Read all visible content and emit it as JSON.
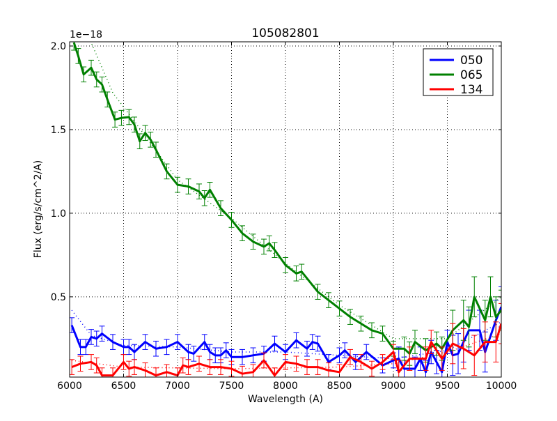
{
  "chart_data": {
    "type": "line",
    "title": "105082801",
    "xlabel": "Wavelength (A)",
    "ylabel": "Flux (erg/s/cm^2/A)",
    "offset_text": "1e−18",
    "xlim": [
      6000,
      10000
    ],
    "ylim": [
      0.02,
      2.025
    ],
    "xticks": [
      6000,
      6500,
      7000,
      7500,
      8000,
      8500,
      9000,
      9500,
      10000
    ],
    "xtick_labels": [
      "6000",
      "6500",
      "7000",
      "7500",
      "8000",
      "8500",
      "9000",
      "9500",
      "10000"
    ],
    "yticks": [
      0.5,
      1.0,
      1.5,
      2.0
    ],
    "ytick_labels": [
      "0.5",
      "1.0",
      "1.5",
      "2.0"
    ],
    "grid": true,
    "legend_position": "top-right",
    "yerr_by_range": [
      [
        6000,
        9000,
        0.045
      ],
      [
        9000,
        9500,
        0.07
      ],
      [
        9500,
        10000,
        0.12
      ]
    ],
    "series": [
      {
        "name": "050",
        "color": "#0000ff",
        "x": [
          6020,
          6100,
          6150,
          6200,
          6250,
          6300,
          6400,
          6500,
          6550,
          6600,
          6700,
          6800,
          6900,
          7000,
          7100,
          7150,
          7250,
          7300,
          7350,
          7400,
          7450,
          7500,
          7600,
          7700,
          7800,
          7900,
          8000,
          8100,
          8200,
          8250,
          8300,
          8400,
          8500,
          8550,
          8650,
          8750,
          8900,
          9000,
          9050,
          9100,
          9200,
          9250,
          9300,
          9350,
          9400,
          9450,
          9500,
          9550,
          9600,
          9650,
          9700,
          9800,
          9850,
          9950,
          10000
        ],
        "y": [
          0.33,
          0.2,
          0.2,
          0.26,
          0.25,
          0.28,
          0.23,
          0.2,
          0.2,
          0.17,
          0.23,
          0.19,
          0.2,
          0.23,
          0.17,
          0.16,
          0.23,
          0.17,
          0.15,
          0.15,
          0.18,
          0.14,
          0.14,
          0.15,
          0.16,
          0.22,
          0.17,
          0.24,
          0.19,
          0.23,
          0.22,
          0.11,
          0.15,
          0.18,
          0.11,
          0.17,
          0.09,
          0.12,
          0.13,
          0.07,
          0.07,
          0.13,
          0.05,
          0.17,
          0.11,
          0.05,
          0.23,
          0.15,
          0.16,
          0.23,
          0.3,
          0.3,
          0.17,
          0.36,
          0.44
        ],
        "model_x": [
          6020,
          6200,
          6500,
          7000,
          7500,
          8000,
          8500,
          9000,
          9500,
          10000
        ],
        "model_y": [
          0.42,
          0.27,
          0.21,
          0.2,
          0.17,
          0.17,
          0.15,
          0.13,
          0.18,
          0.35
        ]
      },
      {
        "name": "065",
        "color": "#008000",
        "x": [
          6040,
          6080,
          6130,
          6200,
          6250,
          6300,
          6350,
          6420,
          6480,
          6550,
          6600,
          6650,
          6700,
          6750,
          6800,
          6900,
          7000,
          7100,
          7200,
          7250,
          7300,
          7400,
          7500,
          7600,
          7700,
          7800,
          7850,
          7900,
          8000,
          8100,
          8150,
          8300,
          8400,
          8500,
          8600,
          8700,
          8800,
          8900,
          9000,
          9100,
          9150,
          9200,
          9300,
          9400,
          9450,
          9550,
          9650,
          9700,
          9750,
          9850,
          9900,
          9950,
          10000
        ],
        "y": [
          2.02,
          1.94,
          1.83,
          1.87,
          1.8,
          1.77,
          1.68,
          1.56,
          1.57,
          1.575,
          1.53,
          1.43,
          1.48,
          1.44,
          1.38,
          1.25,
          1.17,
          1.16,
          1.13,
          1.09,
          1.14,
          1.03,
          0.96,
          0.88,
          0.83,
          0.8,
          0.82,
          0.78,
          0.69,
          0.64,
          0.65,
          0.53,
          0.48,
          0.43,
          0.38,
          0.34,
          0.3,
          0.28,
          0.19,
          0.19,
          0.16,
          0.23,
          0.18,
          0.22,
          0.19,
          0.3,
          0.36,
          0.32,
          0.5,
          0.36,
          0.5,
          0.38,
          0.42
        ],
        "model_x": [
          6180,
          6400,
          6600,
          7000,
          7500,
          8000,
          8500,
          9000,
          9500,
          10000
        ],
        "model_y": [
          2.05,
          1.72,
          1.55,
          1.2,
          0.97,
          0.7,
          0.45,
          0.25,
          0.25,
          0.5
        ]
      },
      {
        "name": "134",
        "color": "#ff0000",
        "x": [
          6020,
          6100,
          6200,
          6250,
          6300,
          6400,
          6500,
          6550,
          6600,
          6700,
          6800,
          6900,
          7000,
          7050,
          7100,
          7200,
          7300,
          7400,
          7500,
          7600,
          7700,
          7800,
          7900,
          8000,
          8100,
          8200,
          8300,
          8400,
          8500,
          8600,
          8700,
          8800,
          8900,
          9000,
          9050,
          9150,
          9300,
          9350,
          9450,
          9550,
          9650,
          9750,
          9850,
          9950,
          10000
        ],
        "y": [
          0.08,
          0.1,
          0.11,
          0.09,
          0.03,
          0.03,
          0.11,
          0.07,
          0.08,
          0.06,
          0.03,
          0.05,
          0.03,
          0.09,
          0.08,
          0.1,
          0.08,
          0.08,
          0.07,
          0.04,
          0.05,
          0.12,
          0.03,
          0.11,
          0.1,
          0.08,
          0.08,
          0.06,
          0.05,
          0.14,
          0.11,
          0.07,
          0.11,
          0.17,
          0.05,
          0.13,
          0.13,
          0.23,
          0.13,
          0.22,
          0.19,
          0.15,
          0.23,
          0.23,
          0.34
        ],
        "model_x": [
          6020,
          6500,
          7500,
          8500,
          9000,
          9500,
          10000
        ],
        "model_y": [
          0.12,
          0.08,
          0.07,
          0.08,
          0.1,
          0.17,
          0.28
        ]
      }
    ]
  }
}
